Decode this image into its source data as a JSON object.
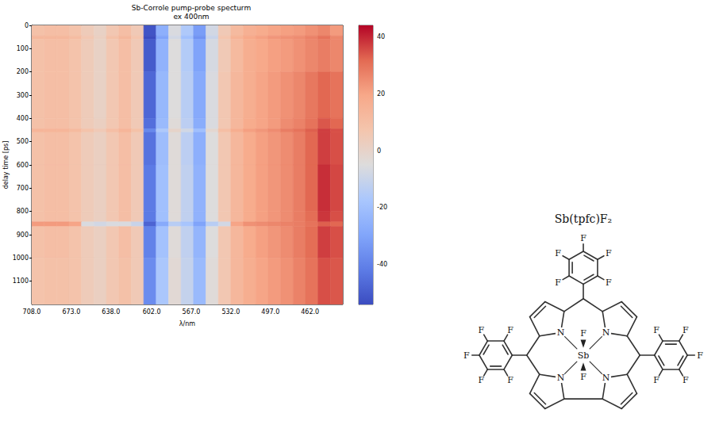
{
  "chart_data": {
    "type": "heatmap",
    "title": "Sb-Corrole pump-probe specturm",
    "subtitle": "ex 400nm",
    "x_label": "λ/nm",
    "y_label": "delay time [ps]",
    "xlim": [
      708,
      433
    ],
    "xticks": [
      {
        "value": 708,
        "label": "708.0"
      },
      {
        "value": 673,
        "label": "673.0"
      },
      {
        "value": 638,
        "label": "638.0"
      },
      {
        "value": 602,
        "label": "602.0"
      },
      {
        "value": 567,
        "label": "567.0"
      },
      {
        "value": 532,
        "label": "532.0"
      },
      {
        "value": 497,
        "label": "497.0"
      },
      {
        "value": 462,
        "label": "462.0"
      }
    ],
    "ylim": [
      0,
      1200
    ],
    "yticks": [
      0,
      100,
      200,
      300,
      400,
      500,
      600,
      700,
      800,
      900,
      1000,
      1100
    ],
    "x_edges": [
      708,
      697,
      686,
      675,
      664,
      653,
      642,
      631,
      620,
      609,
      598,
      587,
      576,
      565,
      554,
      543,
      532,
      521,
      510,
      499,
      488,
      477,
      466,
      455,
      444,
      433
    ],
    "y_edges": [
      0,
      45,
      60,
      200,
      400,
      445,
      460,
      600,
      800,
      845,
      865,
      1000,
      1200
    ],
    "cells": [
      [
        9,
        10,
        10,
        8,
        4,
        1,
        6,
        10,
        5,
        -52,
        -26,
        -6,
        -16,
        -32,
        -8,
        5,
        12,
        16,
        18,
        20,
        21,
        22,
        24,
        26,
        22
      ],
      [
        13,
        13,
        13,
        11,
        6,
        2,
        9,
        13,
        7,
        -55,
        -30,
        -8,
        -20,
        -35,
        -10,
        7,
        15,
        19,
        21,
        23,
        24,
        25,
        27,
        30,
        26
      ],
      [
        9,
        10,
        10,
        8,
        4,
        1,
        6,
        10,
        5,
        -50,
        -25,
        -5,
        -15,
        -30,
        -7,
        5,
        12,
        17,
        19,
        21,
        22,
        24,
        26,
        28,
        26
      ],
      [
        9,
        10,
        10,
        8,
        4,
        1,
        6,
        10,
        5,
        -47,
        -23,
        -5,
        -14,
        -28,
        -6,
        6,
        13,
        17,
        20,
        22,
        24,
        26,
        29,
        32,
        30
      ],
      [
        9,
        10,
        10,
        8,
        4,
        2,
        6,
        10,
        5,
        -45,
        -22,
        -4,
        -13,
        -27,
        -6,
        6,
        13,
        18,
        20,
        22,
        25,
        27,
        30,
        34,
        32
      ],
      [
        14,
        14,
        14,
        12,
        8,
        5,
        10,
        14,
        9,
        -38,
        -16,
        0,
        -8,
        -20,
        -2,
        10,
        17,
        21,
        23,
        25,
        28,
        30,
        33,
        37,
        35
      ],
      [
        9,
        10,
        10,
        8,
        4,
        2,
        6,
        10,
        5,
        -44,
        -21,
        -4,
        -13,
        -26,
        -5,
        6,
        13,
        18,
        21,
        23,
        25,
        28,
        32,
        37,
        35
      ],
      [
        9,
        10,
        10,
        8,
        4,
        2,
        6,
        10,
        5,
        -42,
        -20,
        -4,
        -12,
        -25,
        -5,
        6,
        13,
        18,
        21,
        23,
        25,
        28,
        32,
        39,
        36
      ],
      [
        9,
        10,
        10,
        8,
        4,
        2,
        6,
        10,
        5,
        -42,
        -20,
        -4,
        -12,
        -25,
        -5,
        6,
        13,
        18,
        21,
        23,
        25,
        28,
        31,
        38,
        35
      ],
      [
        22,
        22,
        22,
        20,
        -6,
        -8,
        -6,
        -6,
        -10,
        -48,
        -28,
        -14,
        -18,
        -30,
        -14,
        -8,
        20,
        24,
        25,
        26,
        27,
        28,
        30,
        33,
        32
      ],
      [
        9,
        10,
        10,
        8,
        4,
        2,
        6,
        10,
        5,
        -40,
        -19,
        -4,
        -12,
        -24,
        -5,
        6,
        13,
        18,
        21,
        23,
        25,
        28,
        31,
        37,
        35
      ],
      [
        8,
        9,
        9,
        8,
        4,
        2,
        6,
        9,
        5,
        -37,
        -17,
        -3,
        -11,
        -22,
        -4,
        6,
        13,
        17,
        20,
        22,
        24,
        27,
        30,
        35,
        34
      ]
    ],
    "colorbar": {
      "range": [
        -54,
        44
      ],
      "ticks": [
        -40,
        -20,
        0,
        20,
        40
      ]
    }
  },
  "structure": {
    "title": "Sb(tpfc)F₂",
    "metal": "Sb",
    "nitrogen": "N",
    "fluorine": "F"
  }
}
